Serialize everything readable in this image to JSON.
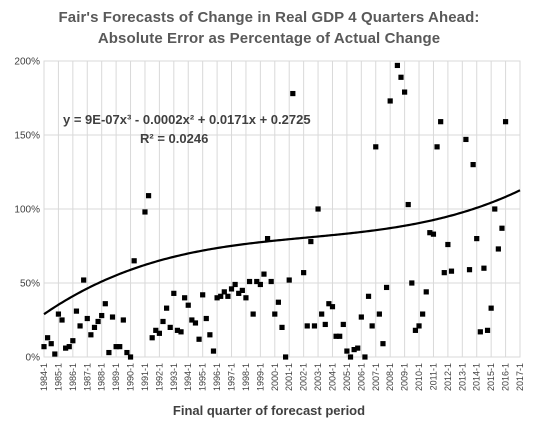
{
  "chart_data": {
    "type": "scatter",
    "title": "Fair's Forecasts of Change in Real GDP 4 Quarters Ahead:",
    "subtitle": "Absolute Error as Percentage of Actual Change",
    "xlabel": "Final quarter of forecast period",
    "ylabel": "",
    "x_domain": [
      1,
      133
    ],
    "ylim": [
      0,
      2.0
    ],
    "y_ticks": [
      0,
      0.5,
      1.0,
      1.5,
      2.0
    ],
    "y_tick_labels": [
      "0%",
      "50%",
      "100%",
      "150%",
      "200%"
    ],
    "x_tick_labels": [
      "1984-1",
      "1985-1",
      "1986-1",
      "1987-1",
      "1988-1",
      "1989-1",
      "1990-1",
      "1991-1",
      "1992-1",
      "1993-1",
      "1994-1",
      "1995-1",
      "1996-1",
      "1997-1",
      "1998-1",
      "1999-1",
      "2000-1",
      "2001-1",
      "2002-1",
      "2003-1",
      "2004-1",
      "2005-1",
      "2006-1",
      "2007-1",
      "2008-1",
      "2009-1",
      "2010-1",
      "2011-1",
      "2012-1",
      "2013-1",
      "2014-1",
      "2015-1",
      "2016-1",
      "2017-1"
    ],
    "grid": true,
    "legend": "none",
    "marker_color": "#000000",
    "trendline": {
      "type": "polynomial",
      "order": 3,
      "coefficients": [
        0.2725,
        0.0171,
        -0.0002,
        9e-07
      ],
      "equation_label": "y = 9E-07x³ - 0.0002x² + 0.0171x + 0.2725",
      "r2_label": "R² = 0.0246",
      "color": "#000000"
    },
    "points": [
      [
        1,
        0.07
      ],
      [
        2,
        0.13
      ],
      [
        3,
        0.09
      ],
      [
        4,
        0.02
      ],
      [
        5,
        0.29
      ],
      [
        6,
        0.25
      ],
      [
        7,
        0.06
      ],
      [
        8,
        0.07
      ],
      [
        9,
        0.11
      ],
      [
        10,
        0.31
      ],
      [
        11,
        0.21
      ],
      [
        12,
        0.52
      ],
      [
        13,
        0.26
      ],
      [
        14,
        0.15
      ],
      [
        15,
        0.2
      ],
      [
        16,
        0.24
      ],
      [
        17,
        0.28
      ],
      [
        18,
        0.36
      ],
      [
        19,
        0.03
      ],
      [
        20,
        0.27
      ],
      [
        21,
        0.07
      ],
      [
        22,
        0.07
      ],
      [
        23,
        0.25
      ],
      [
        24,
        0.03
      ],
      [
        25,
        0.0
      ],
      [
        26,
        0.65
      ],
      [
        29,
        0.98
      ],
      [
        30,
        1.09
      ],
      [
        31,
        0.13
      ],
      [
        32,
        0.18
      ],
      [
        33,
        0.16
      ],
      [
        34,
        0.24
      ],
      [
        35,
        0.33
      ],
      [
        36,
        0.2
      ],
      [
        37,
        0.43
      ],
      [
        38,
        0.18
      ],
      [
        39,
        0.17
      ],
      [
        40,
        0.4
      ],
      [
        41,
        0.35
      ],
      [
        42,
        0.25
      ],
      [
        43,
        0.23
      ],
      [
        44,
        0.12
      ],
      [
        45,
        0.42
      ],
      [
        46,
        0.26
      ],
      [
        47,
        0.15
      ],
      [
        48,
        0.04
      ],
      [
        49,
        0.4
      ],
      [
        50,
        0.41
      ],
      [
        51,
        0.44
      ],
      [
        52,
        0.41
      ],
      [
        53,
        0.46
      ],
      [
        54,
        0.49
      ],
      [
        55,
        0.43
      ],
      [
        56,
        0.45
      ],
      [
        57,
        0.4
      ],
      [
        58,
        0.51
      ],
      [
        59,
        0.29
      ],
      [
        60,
        0.51
      ],
      [
        61,
        0.49
      ],
      [
        62,
        0.56
      ],
      [
        63,
        0.8
      ],
      [
        64,
        0.51
      ],
      [
        65,
        0.29
      ],
      [
        66,
        0.37
      ],
      [
        67,
        0.2
      ],
      [
        68,
        0.0
      ],
      [
        69,
        0.52
      ],
      [
        70,
        1.78
      ],
      [
        73,
        0.57
      ],
      [
        74,
        0.21
      ],
      [
        75,
        0.78
      ],
      [
        76,
        0.21
      ],
      [
        77,
        1.0
      ],
      [
        78,
        0.29
      ],
      [
        79,
        0.22
      ],
      [
        80,
        0.36
      ],
      [
        81,
        0.34
      ],
      [
        82,
        0.14
      ],
      [
        83,
        0.14
      ],
      [
        84,
        0.22
      ],
      [
        85,
        0.04
      ],
      [
        86,
        0.0
      ],
      [
        87,
        0.05
      ],
      [
        88,
        0.06
      ],
      [
        89,
        0.27
      ],
      [
        90,
        0.0
      ],
      [
        91,
        0.41
      ],
      [
        92,
        0.21
      ],
      [
        93,
        1.42
      ],
      [
        94,
        0.29
      ],
      [
        95,
        0.09
      ],
      [
        96,
        0.47
      ],
      [
        97,
        1.73
      ],
      [
        99,
        1.97
      ],
      [
        100,
        1.89
      ],
      [
        101,
        1.79
      ],
      [
        102,
        1.03
      ],
      [
        103,
        0.5
      ],
      [
        104,
        0.18
      ],
      [
        105,
        0.21
      ],
      [
        106,
        0.29
      ],
      [
        107,
        0.44
      ],
      [
        108,
        0.84
      ],
      [
        109,
        0.83
      ],
      [
        110,
        1.42
      ],
      [
        111,
        1.59
      ],
      [
        112,
        0.57
      ],
      [
        113,
        0.76
      ],
      [
        114,
        0.58
      ],
      [
        118,
        1.47
      ],
      [
        119,
        0.59
      ],
      [
        120,
        1.3
      ],
      [
        121,
        0.8
      ],
      [
        122,
        0.17
      ],
      [
        123,
        0.6
      ],
      [
        124,
        0.18
      ],
      [
        125,
        0.33
      ],
      [
        126,
        1.0
      ],
      [
        127,
        0.73
      ],
      [
        128,
        0.87
      ],
      [
        129,
        1.59
      ]
    ]
  }
}
